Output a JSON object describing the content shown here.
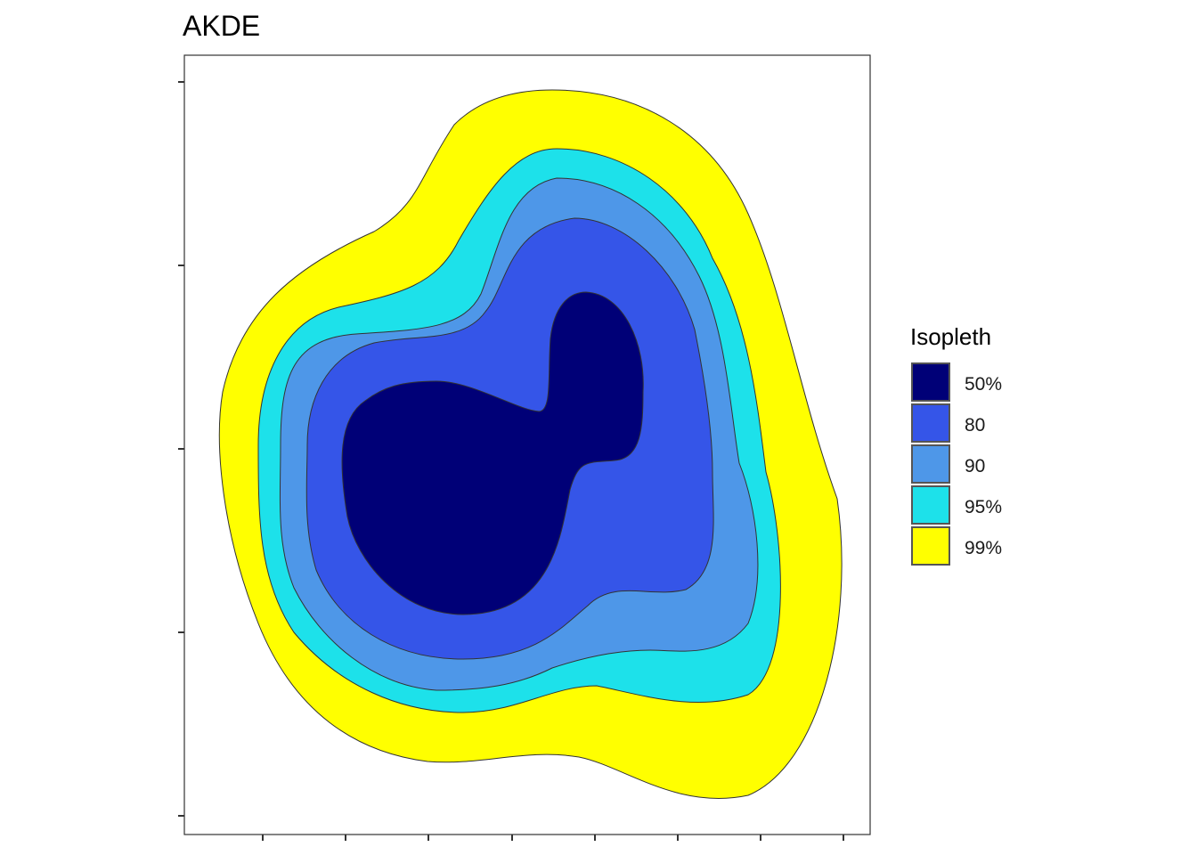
{
  "chart_data": {
    "type": "contour",
    "title": "AKDE",
    "xlabel": "",
    "ylabel": "",
    "grid": false,
    "x_ticks_count": 8,
    "y_ticks_count": 5,
    "legend": {
      "title": "Isopleth",
      "placement": "right",
      "entries": [
        {
          "label": "50%",
          "color": "#000077"
        },
        {
          "label": "80",
          "color": "#3555E8"
        },
        {
          "label": "90",
          "color": "#4E97E8"
        },
        {
          "label": "95%",
          "color": "#1DE1EA"
        },
        {
          "label": "99%",
          "color": "#FFFF00"
        }
      ]
    },
    "isopleths": [
      {
        "level": "99%",
        "color": "#FFFF00"
      },
      {
        "level": "95%",
        "color": "#1DE1EA"
      },
      {
        "level": "90",
        "color": "#4E97E8"
      },
      {
        "level": "80",
        "color": "#3555E8"
      },
      {
        "level": "50%",
        "color": "#000077"
      }
    ]
  }
}
